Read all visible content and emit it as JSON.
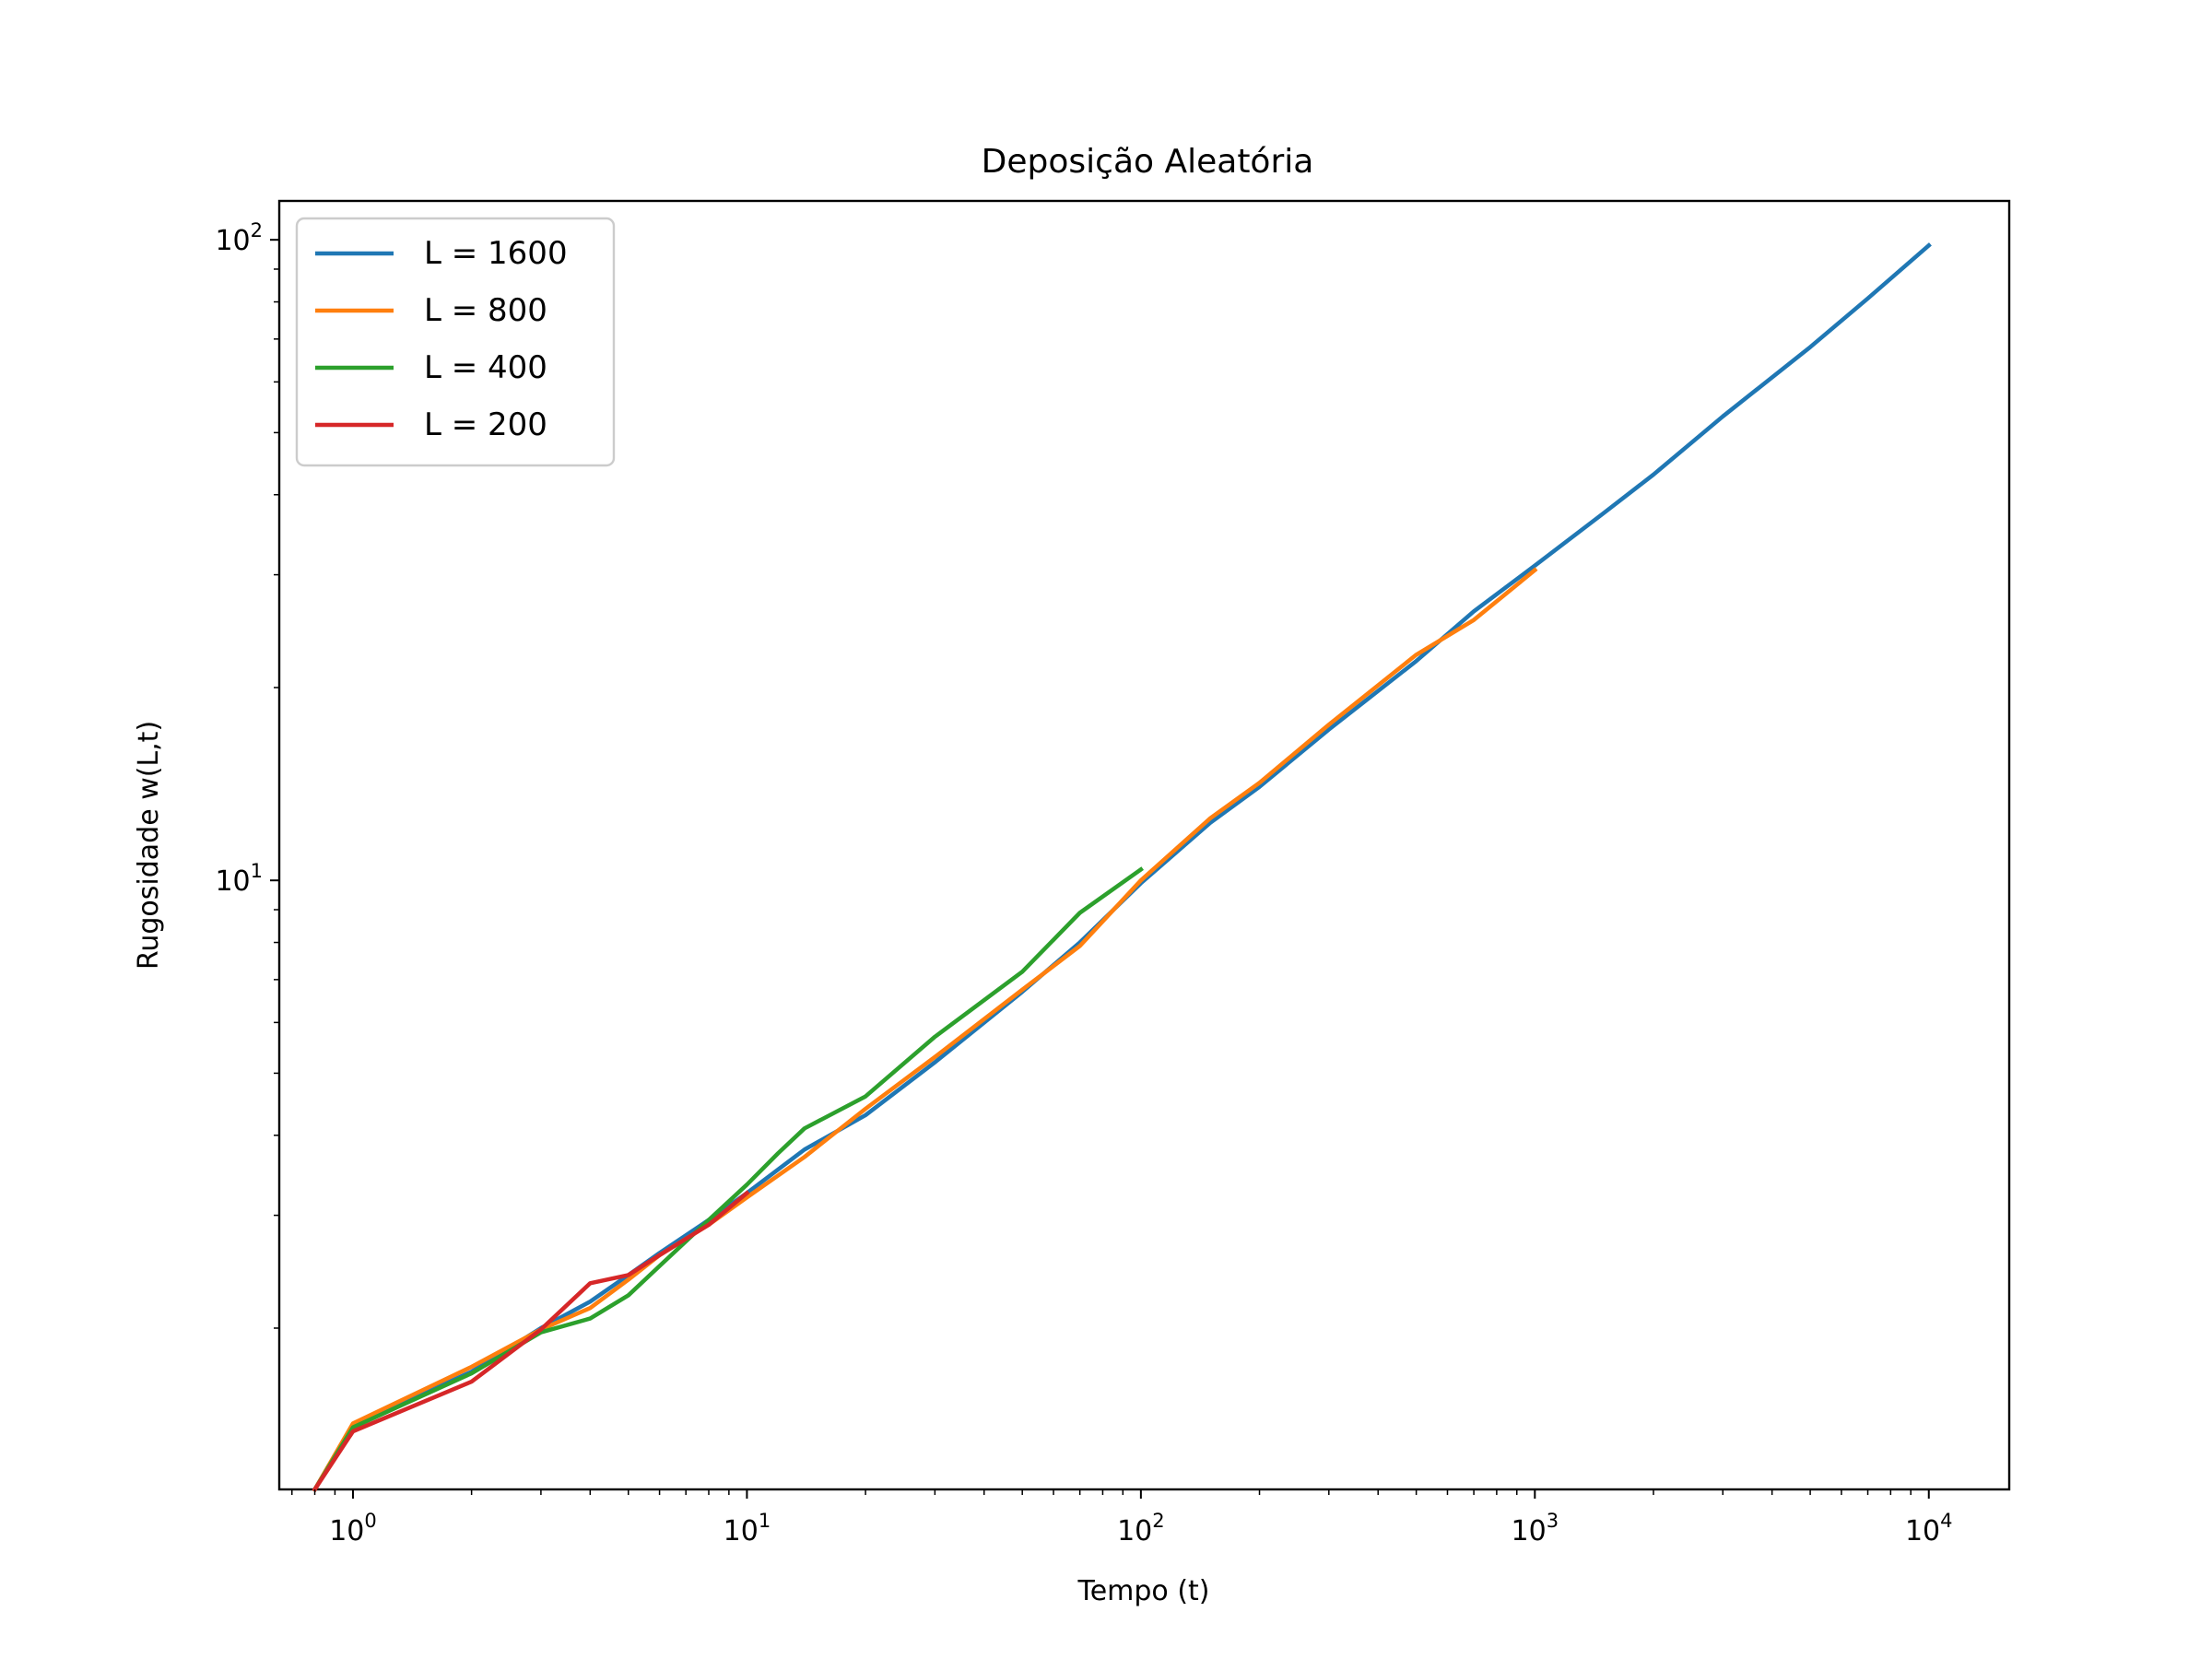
{
  "chart_data": {
    "type": "line",
    "title": "Deposição Aleatória",
    "xlabel": "Tempo (t)",
    "ylabel": "Rugosidade w(L,t)",
    "xscale": "log",
    "yscale": "log",
    "xlim": [
      0.65,
      16000
    ],
    "ylim": [
      1.12,
      115
    ],
    "xticks": [
      {
        "value": 1,
        "base": "10",
        "exp": "0"
      },
      {
        "value": 10,
        "base": "10",
        "exp": "1"
      },
      {
        "value": 100,
        "base": "10",
        "exp": "2"
      },
      {
        "value": 1000,
        "base": "10",
        "exp": "3"
      },
      {
        "value": 10000,
        "base": "10",
        "exp": "4"
      }
    ],
    "yticks": [
      {
        "value": 10,
        "base": "10",
        "exp": "1"
      },
      {
        "value": 100,
        "base": "10",
        "exp": "2"
      }
    ],
    "grid": false,
    "legend_position": "top-left",
    "series": [
      {
        "name": "L = 1600",
        "color": "#1f77b4",
        "points": [
          [
            0.8,
            1.12
          ],
          [
            1,
            1.41
          ],
          [
            2,
            1.71
          ],
          [
            3,
            2.0
          ],
          [
            4,
            2.2
          ],
          [
            5,
            2.42
          ],
          [
            6,
            2.62
          ],
          [
            8,
            2.95
          ],
          [
            10,
            3.25
          ],
          [
            14,
            3.8
          ],
          [
            20,
            4.3
          ],
          [
            30,
            5.2
          ],
          [
            50,
            6.7
          ],
          [
            70,
            8.0
          ],
          [
            100,
            9.9
          ],
          [
            150,
            12.3
          ],
          [
            200,
            14.0
          ],
          [
            300,
            17.2
          ],
          [
            500,
            22.0
          ],
          [
            700,
            26.3
          ],
          [
            1000,
            31.0
          ],
          [
            1500,
            37.5
          ],
          [
            2000,
            43.0
          ],
          [
            3000,
            53.0
          ],
          [
            5000,
            68.0
          ],
          [
            7000,
            81.0
          ],
          [
            10000,
            98.0
          ]
        ]
      },
      {
        "name": "L = 800",
        "color": "#ff7f0e",
        "points": [
          [
            0.8,
            1.12
          ],
          [
            1,
            1.42
          ],
          [
            2,
            1.74
          ],
          [
            3,
            1.99
          ],
          [
            4,
            2.15
          ],
          [
            5,
            2.38
          ],
          [
            6,
            2.6
          ],
          [
            8,
            2.9
          ],
          [
            10,
            3.2
          ],
          [
            14,
            3.7
          ],
          [
            20,
            4.4
          ],
          [
            30,
            5.3
          ],
          [
            50,
            6.75
          ],
          [
            70,
            7.9
          ],
          [
            100,
            10.0
          ],
          [
            150,
            12.5
          ],
          [
            200,
            14.2
          ],
          [
            300,
            17.5
          ],
          [
            500,
            22.5
          ],
          [
            700,
            25.5
          ],
          [
            1000,
            30.5
          ]
        ]
      },
      {
        "name": "L = 400",
        "color": "#2ca02c",
        "points": [
          [
            0.8,
            1.12
          ],
          [
            1,
            1.4
          ],
          [
            2,
            1.7
          ],
          [
            3,
            1.97
          ],
          [
            4,
            2.07
          ],
          [
            5,
            2.25
          ],
          [
            6,
            2.5
          ],
          [
            8,
            2.95
          ],
          [
            10,
            3.35
          ],
          [
            12,
            3.75
          ],
          [
            14,
            4.1
          ],
          [
            20,
            4.6
          ],
          [
            30,
            5.7
          ],
          [
            50,
            7.2
          ],
          [
            70,
            8.9
          ],
          [
            100,
            10.4
          ]
        ]
      },
      {
        "name": "L = 200",
        "color": "#d62728",
        "points": [
          [
            0.8,
            1.12
          ],
          [
            1,
            1.38
          ],
          [
            2,
            1.65
          ],
          [
            3,
            1.99
          ],
          [
            4,
            2.35
          ],
          [
            5,
            2.42
          ],
          [
            6,
            2.6
          ],
          [
            8,
            2.9
          ],
          [
            10,
            3.25
          ]
        ]
      }
    ]
  }
}
